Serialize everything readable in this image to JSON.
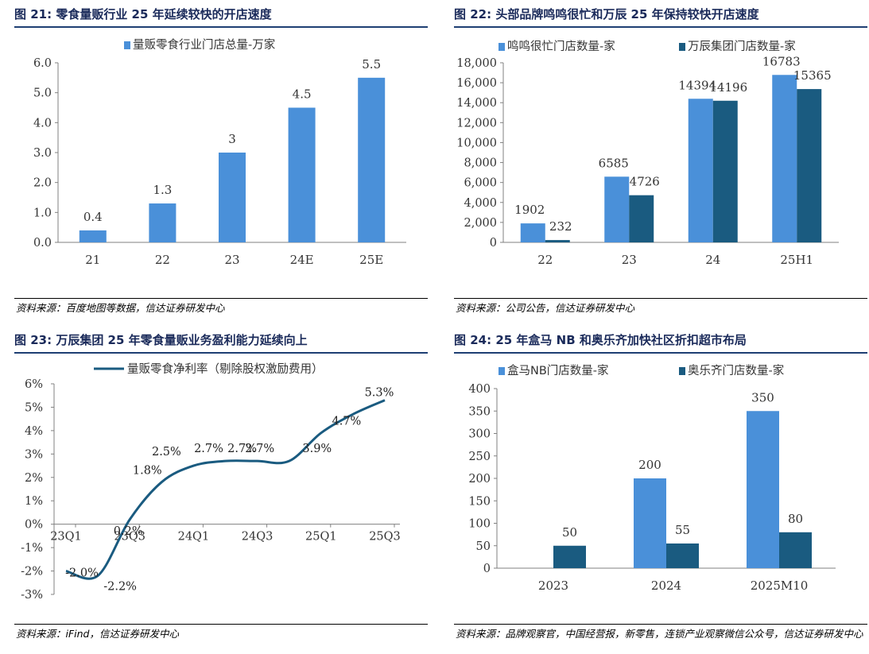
{
  "colors": {
    "light": "#4a90d9",
    "dark": "#1a5b80",
    "title": "#1a2a5a",
    "axis": "#808080"
  },
  "chart_data": [
    {
      "id": "fig21",
      "type": "bar",
      "title": "图 21: 零食量贩行业 25 年延续较快的开店速度",
      "source": "资料来源：百度地图等数据，信达证券研发中心",
      "categories": [
        "21",
        "22",
        "23",
        "24E",
        "25E"
      ],
      "series": [
        {
          "name": "量贩零食行业门店总量-万家",
          "values": [
            0.4,
            1.3,
            3,
            4.5,
            5.5
          ],
          "labels": [
            "0.4",
            "1.3",
            "3",
            "4.5",
            "5.5"
          ]
        }
      ],
      "ylim": [
        0,
        6
      ],
      "yticks": [
        "0.0",
        "1.0",
        "2.0",
        "3.0",
        "4.0",
        "5.0",
        "6.0"
      ],
      "xlabel": "",
      "ylabel": ""
    },
    {
      "id": "fig22",
      "type": "bar",
      "title": "图 22: 头部品牌鸣鸣很忙和万辰 25 年保持较快开店速度",
      "source": "资料来源：公司公告，信达证券研发中心",
      "categories": [
        "22",
        "23",
        "24",
        "25H1"
      ],
      "series": [
        {
          "name": "鸣鸣很忙门店数量-家",
          "values": [
            1902,
            6585,
            14394,
            16783
          ],
          "labels": [
            "1902",
            "6585",
            "14394",
            "16783"
          ]
        },
        {
          "name": "万辰集团门店数量-家",
          "values": [
            232,
            4726,
            14196,
            15365
          ],
          "labels": [
            "232",
            "4726",
            "14196",
            "15365"
          ]
        }
      ],
      "ylim": [
        0,
        18000
      ],
      "yticks": [
        "0",
        "2,000",
        "4,000",
        "6,000",
        "8,000",
        "10,000",
        "12,000",
        "14,000",
        "16,000",
        "18,000"
      ],
      "xlabel": "",
      "ylabel": ""
    },
    {
      "id": "fig23",
      "type": "line",
      "title": "图 23: 万辰集团 25 年零食量贩业务盈利能力延续向上",
      "source": "资料来源：iFind，信达证券研发中心",
      "x": [
        "23Q1",
        "23Q2",
        "23Q3",
        "23Q4",
        "24Q1",
        "24Q2",
        "24Q3",
        "24Q4",
        "25Q1",
        "25Q2",
        "25Q3"
      ],
      "xtick_labels": [
        "23Q1",
        "23Q3",
        "24Q1",
        "24Q3",
        "25Q1",
        "25Q3"
      ],
      "series": [
        {
          "name": "量贩零食净利率（剔除股权激励费用）",
          "values": [
            -2.0,
            -2.2,
            0.2,
            1.8,
            2.5,
            2.7,
            2.7,
            2.7,
            3.9,
            4.7,
            5.3
          ],
          "labels": [
            "-2.0%",
            "-2.2%",
            "0.2%",
            "1.8%",
            "2.5%",
            "2.7%",
            "2.7%",
            "2.7%",
            "3.9%",
            "4.7%",
            "5.3%"
          ]
        }
      ],
      "ylim": [
        -3,
        6
      ],
      "yticks": [
        "-3%",
        "-2%",
        "-1%",
        "0%",
        "1%",
        "2%",
        "3%",
        "4%",
        "5%",
        "6%"
      ],
      "xlabel": "",
      "ylabel": ""
    },
    {
      "id": "fig24",
      "type": "bar",
      "title": "图 24: 25 年盒马 NB 和奥乐齐加快社区折扣超市布局",
      "source": "资料来源：品牌观察官，中国经营报，新零售，连锁产业观察微信公众号，信达证券研发中心",
      "categories": [
        "2023",
        "2024",
        "2025M10"
      ],
      "series": [
        {
          "name": "盒马NB门店数量-家",
          "values": [
            null,
            200,
            350
          ],
          "labels": [
            "",
            "200",
            "350"
          ]
        },
        {
          "name": "奥乐齐门店数量-家",
          "values": [
            50,
            55,
            80
          ],
          "labels": [
            "50",
            "55",
            "80"
          ]
        }
      ],
      "ylim": [
        0,
        400
      ],
      "yticks": [
        "0",
        "50",
        "100",
        "150",
        "200",
        "250",
        "300",
        "350",
        "400"
      ],
      "xlabel": "",
      "ylabel": ""
    }
  ]
}
